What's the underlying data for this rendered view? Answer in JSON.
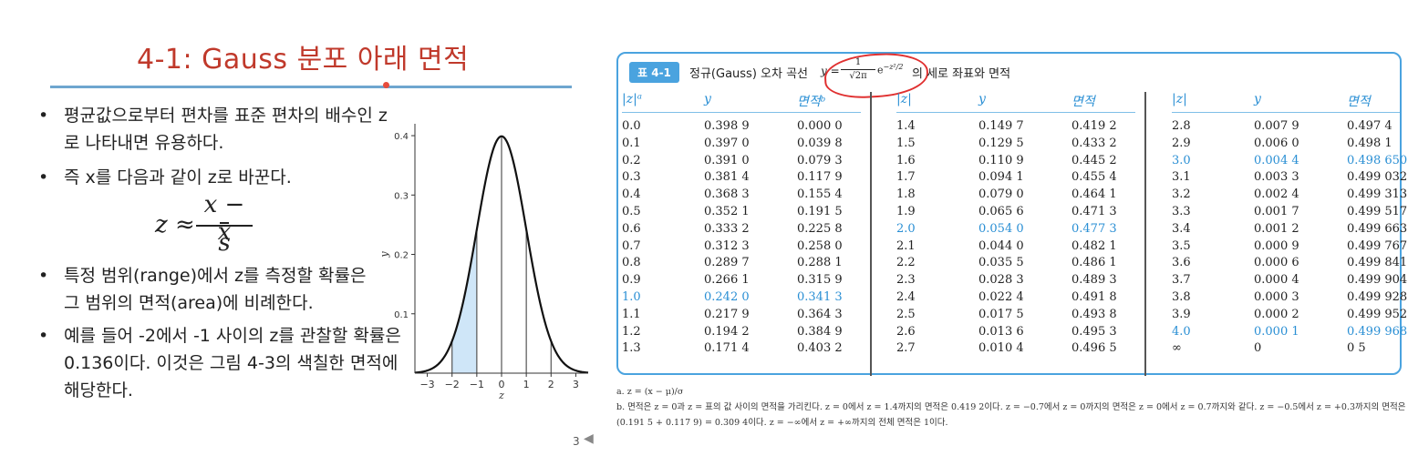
{
  "slide": {
    "title": "4-1: Gauss 분포 아래 면적",
    "bullets": [
      "평균값으로부터 편차를 표준 편차의 배수인 z로 나타내면 유용하다.",
      " 즉 x를 다음과 같이 z로 바꾼다.",
      "특정 범위(range)에서 z를 측정할 확률은 그 범위의 면적(area)에 비례한다.",
      "예를 들어 -2에서 -1 사이의 z를 관찰할 확률은 0.136이다. 이것은 그림 4-3의 색칠한 면적에 해당한다."
    ],
    "formula": {
      "lhs": "z ≈",
      "num_x": "x",
      "num_minus": " − ",
      "num_xbar": "x",
      "den": "s"
    },
    "slide_number": "3"
  },
  "chart_data": {
    "type": "area",
    "title": "",
    "xlabel": "z",
    "ylabel": "y",
    "xlim": [
      -3.5,
      3.5
    ],
    "ylim": [
      0,
      0.42
    ],
    "x_ticks": [
      "−3",
      "−2",
      "−1",
      "0",
      "1",
      "2",
      "3"
    ],
    "y_ticks": [
      "0.1",
      "0.2",
      "0.3",
      "0.4"
    ],
    "x_tick_values": [
      -3,
      -2,
      -1,
      0,
      1,
      2,
      3
    ],
    "y_tick_values": [
      0.1,
      0.2,
      0.3,
      0.4
    ],
    "curve": "standard normal density y = (1/√(2π)) e^(−z²/2)",
    "shaded_range": [
      -2,
      -1
    ],
    "vertical_lines_at": [
      -2,
      -1,
      0,
      1,
      2
    ],
    "colors": {
      "curve": "#111111",
      "shade": "#cfe6f8",
      "axis": "#333333"
    }
  },
  "table": {
    "badge": "표 4-1",
    "caption_pre": "정규(Gauss) 오차 곡선",
    "formula": {
      "y": "y =",
      "num": "1",
      "den": "√2π",
      "exp_base": "e",
      "exp_power": "−z²/2"
    },
    "caption_post": "의 세로 좌표와 면적",
    "headers": [
      {
        "z": "|z|ᵃ",
        "y": "y",
        "area": "면적ᵇ"
      },
      {
        "z": "|z|",
        "y": "y",
        "area": "면적"
      },
      {
        "z": "|z|",
        "y": "y",
        "area": "면적"
      }
    ],
    "groups": [
      [
        [
          "0.0",
          "0.398 9",
          "0.000 0"
        ],
        [
          "0.1",
          "0.397 0",
          "0.039 8"
        ],
        [
          "0.2",
          "0.391 0",
          "0.079 3"
        ],
        [
          "0.3",
          "0.381 4",
          "0.117 9"
        ],
        [
          "0.4",
          "0.368 3",
          "0.155 4"
        ],
        [
          "0.5",
          "0.352 1",
          "0.191 5"
        ],
        [
          "0.6",
          "0.333 2",
          "0.225 8"
        ],
        [
          "0.7",
          "0.312 3",
          "0.258 0"
        ],
        [
          "0.8",
          "0.289 7",
          "0.288 1"
        ],
        [
          "0.9",
          "0.266 1",
          "0.315 9"
        ],
        [
          "1.0",
          "0.242 0",
          "0.341 3"
        ],
        [
          "1.1",
          "0.217 9",
          "0.364 3"
        ],
        [
          "1.2",
          "0.194 2",
          "0.384 9"
        ],
        [
          "1.3",
          "0.171 4",
          "0.403 2"
        ]
      ],
      [
        [
          "1.4",
          "0.149 7",
          "0.419 2"
        ],
        [
          "1.5",
          "0.129 5",
          "0.433 2"
        ],
        [
          "1.6",
          "0.110 9",
          "0.445 2"
        ],
        [
          "1.7",
          "0.094 1",
          "0.455 4"
        ],
        [
          "1.8",
          "0.079 0",
          "0.464 1"
        ],
        [
          "1.9",
          "0.065 6",
          "0.471 3"
        ],
        [
          "2.0",
          "0.054 0",
          "0.477 3"
        ],
        [
          "2.1",
          "0.044 0",
          "0.482 1"
        ],
        [
          "2.2",
          "0.035 5",
          "0.486 1"
        ],
        [
          "2.3",
          "0.028 3",
          "0.489 3"
        ],
        [
          "2.4",
          "0.022 4",
          "0.491 8"
        ],
        [
          "2.5",
          "0.017 5",
          "0.493 8"
        ],
        [
          "2.6",
          "0.013 6",
          "0.495 3"
        ],
        [
          "2.7",
          "0.010 4",
          "0.496 5"
        ]
      ],
      [
        [
          "2.8",
          "0.007 9",
          "0.497 4"
        ],
        [
          "2.9",
          "0.006 0",
          "0.498 1"
        ],
        [
          "3.0",
          "0.004 4",
          "0.498 650"
        ],
        [
          "3.1",
          "0.003 3",
          "0.499 032"
        ],
        [
          "3.2",
          "0.002 4",
          "0.499 313"
        ],
        [
          "3.3",
          "0.001 7",
          "0.499 517"
        ],
        [
          "3.4",
          "0.001 2",
          "0.499 663"
        ],
        [
          "3.5",
          "0.000 9",
          "0.499 767"
        ],
        [
          "3.6",
          "0.000 6",
          "0.499 841"
        ],
        [
          "3.7",
          "0.000 4",
          "0.499 904"
        ],
        [
          "3.8",
          "0.000 3",
          "0.499 928"
        ],
        [
          "3.9",
          "0.000 2",
          "0.499 952"
        ],
        [
          "4.0",
          "0.000 1",
          "0.499 968"
        ],
        [
          "∞",
          "0",
          "0 5"
        ]
      ]
    ],
    "highlighted_rows": {
      "0": [
        10
      ],
      "1": [
        6
      ],
      "2": [
        2,
        12
      ]
    },
    "highlight_color": "#2a8fd4",
    "accent_color": "#4aa3df"
  },
  "footnotes": {
    "a": "a. z = (x − μ)/σ",
    "b": "b. 면적은 z = 0과 z = 표의 값 사이의 면적을 가리킨다. z = 0에서 z = 1.4까지의 면적은 0.419 2이다. z = −0.7에서 z = 0까지의 면적은 z = 0에서 z = 0.7까지와 같다. z = −0.5에서 z = +0.3까지의 면적은 (0.191 5 + 0.117 9) = 0.309 4이다. z = −∞에서 z = +∞까지의 전체 면적은 1이다."
  }
}
